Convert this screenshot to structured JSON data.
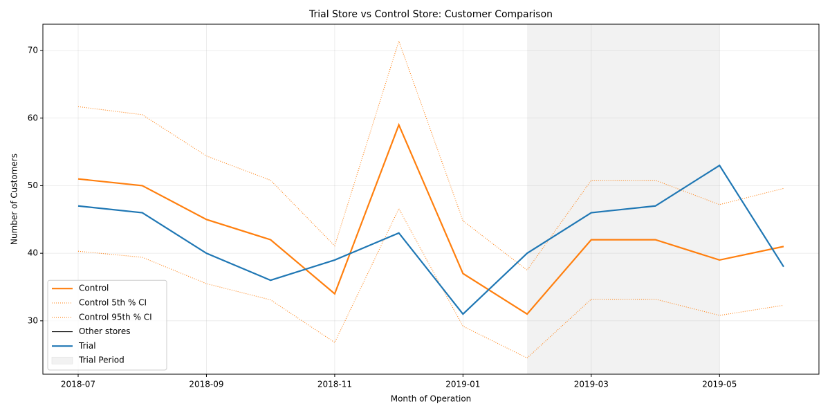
{
  "chart_data": {
    "type": "line",
    "title": "Trial Store vs Control Store: Customer Comparison",
    "xlabel": "Month of Operation",
    "ylabel": "Number of Customers",
    "x": [
      "2018-07",
      "2018-08",
      "2018-09",
      "2018-10",
      "2018-11",
      "2018-12",
      "2019-01",
      "2019-02",
      "2019-03",
      "2019-04",
      "2019-05",
      "2019-06"
    ],
    "series": [
      {
        "name": "Control",
        "color": "#ff7f0e",
        "style": "solid",
        "width": 2,
        "values": [
          51,
          50,
          45,
          42,
          34,
          59,
          37,
          31,
          42,
          42,
          39,
          41
        ]
      },
      {
        "name": "Control 5th % CI",
        "color": "#ff7f0e",
        "style": "dotted",
        "width": 1,
        "values": [
          40.3,
          39.4,
          35.5,
          33.1,
          26.8,
          46.6,
          29.2,
          24.5,
          33.2,
          33.2,
          30.8,
          32.3
        ]
      },
      {
        "name": "Control 95th % CI",
        "color": "#ff7f0e",
        "style": "dotted",
        "width": 1,
        "values": [
          61.7,
          60.5,
          54.4,
          50.8,
          41.1,
          71.4,
          44.8,
          37.5,
          50.8,
          50.8,
          47.2,
          49.6
        ]
      },
      {
        "name": "Other stores",
        "color": "#000000",
        "style": "solid",
        "width": 1,
        "values": [
          null,
          null,
          null,
          null,
          null,
          null,
          null,
          null,
          null,
          null,
          null,
          null
        ]
      },
      {
        "name": "Trial",
        "color": "#1f77b4",
        "style": "solid",
        "width": 2,
        "values": [
          47,
          46,
          40,
          36,
          39,
          43,
          31,
          40,
          46,
          47,
          53,
          38
        ]
      }
    ],
    "shaded_regions": [
      {
        "name": "Trial Period",
        "start": "2019-02",
        "end": "2019-05",
        "color": "#f2f2f2"
      }
    ],
    "xticks": [
      "2018-07",
      "2018-09",
      "2018-11",
      "2019-01",
      "2019-03",
      "2019-05"
    ],
    "ylim": [
      22.1,
      73.9
    ],
    "yticks": [
      30,
      40,
      50,
      60,
      70
    ],
    "grid": true,
    "legend": "lower left"
  }
}
